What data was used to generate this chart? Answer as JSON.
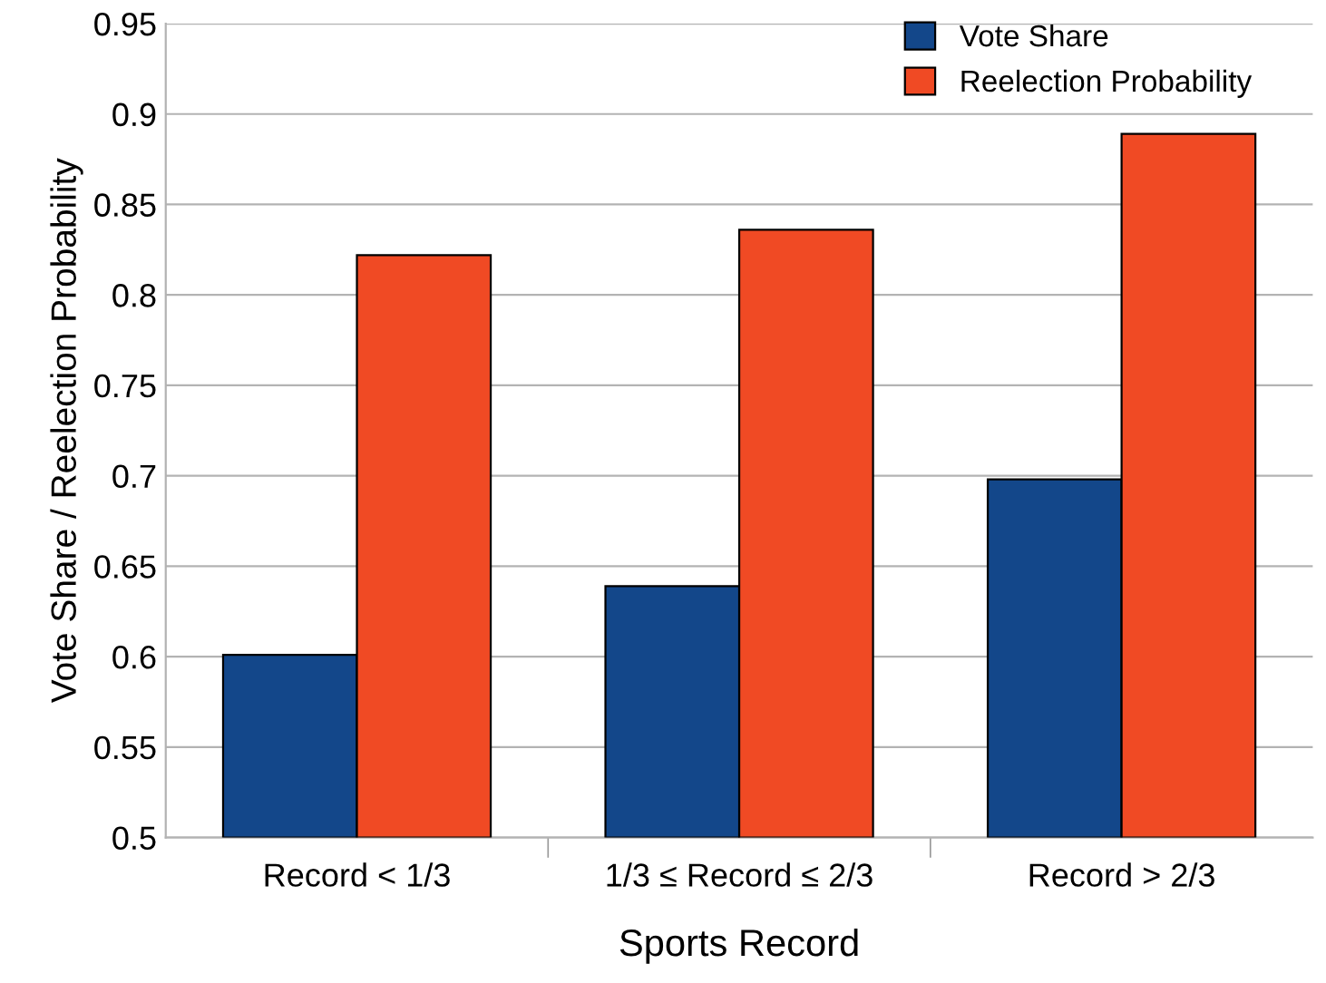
{
  "chart_data": {
    "type": "bar",
    "xlabel": "Sports Record",
    "ylabel": "Vote Share / Reelection Probability",
    "categories": [
      "Record < 1/3",
      "1/3 ≤ Record ≤ 2/3",
      "Record > 2/3"
    ],
    "series": [
      {
        "name": "Vote Share",
        "color": "#13478a",
        "values": [
          0.601,
          0.639,
          0.698
        ]
      },
      {
        "name": "Reelection Probability",
        "color": "#f04a24",
        "values": [
          0.822,
          0.836,
          0.889
        ]
      }
    ],
    "ylim": [
      0.5,
      0.95
    ],
    "yticks": [
      0.5,
      0.55,
      0.6,
      0.65,
      0.7,
      0.75,
      0.8,
      0.85,
      0.9,
      0.95
    ],
    "grid": "y",
    "legend": "top right"
  }
}
